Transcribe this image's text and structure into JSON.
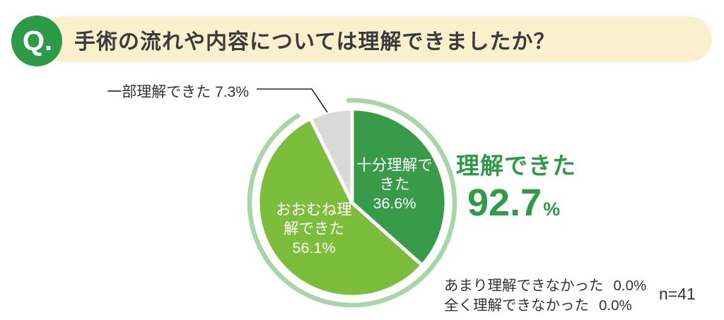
{
  "header": {
    "q_label": "Q.",
    "title": "手術の流れや内容については理解できましたか？"
  },
  "chart_data": {
    "type": "pie",
    "title": "手術の流れや内容については理解できましたか？",
    "start": "12-oclock-clockwise",
    "n_label": "n=41",
    "ring_color": "#a8d5a8",
    "segments": [
      {
        "label": "十分理解できた",
        "value": 36.6,
        "color": "#379b49",
        "display": "十分理解で\nきた\n36.6%"
      },
      {
        "label": "おおむね理解できた",
        "value": 56.1,
        "color": "#7cbd3c",
        "display": "おおむね理\n解できた\n56.1%"
      },
      {
        "label": "一部理解できた",
        "value": 7.3,
        "color": "#d9d9d9",
        "display": "一部理解できた 7.3%"
      },
      {
        "label": "あまり理解できなかった",
        "value": 0.0
      },
      {
        "label": "全く理解できなかった",
        "value": 0.0
      }
    ],
    "highlight": {
      "label": "理解できた",
      "value": "92.7",
      "unit": "%",
      "color": "#2f9b49"
    },
    "footnotes": [
      {
        "label": "あまり理解できなかった",
        "value": "0.0%"
      },
      {
        "label": "全く理解できなかった",
        "value": "0.0%"
      }
    ]
  }
}
